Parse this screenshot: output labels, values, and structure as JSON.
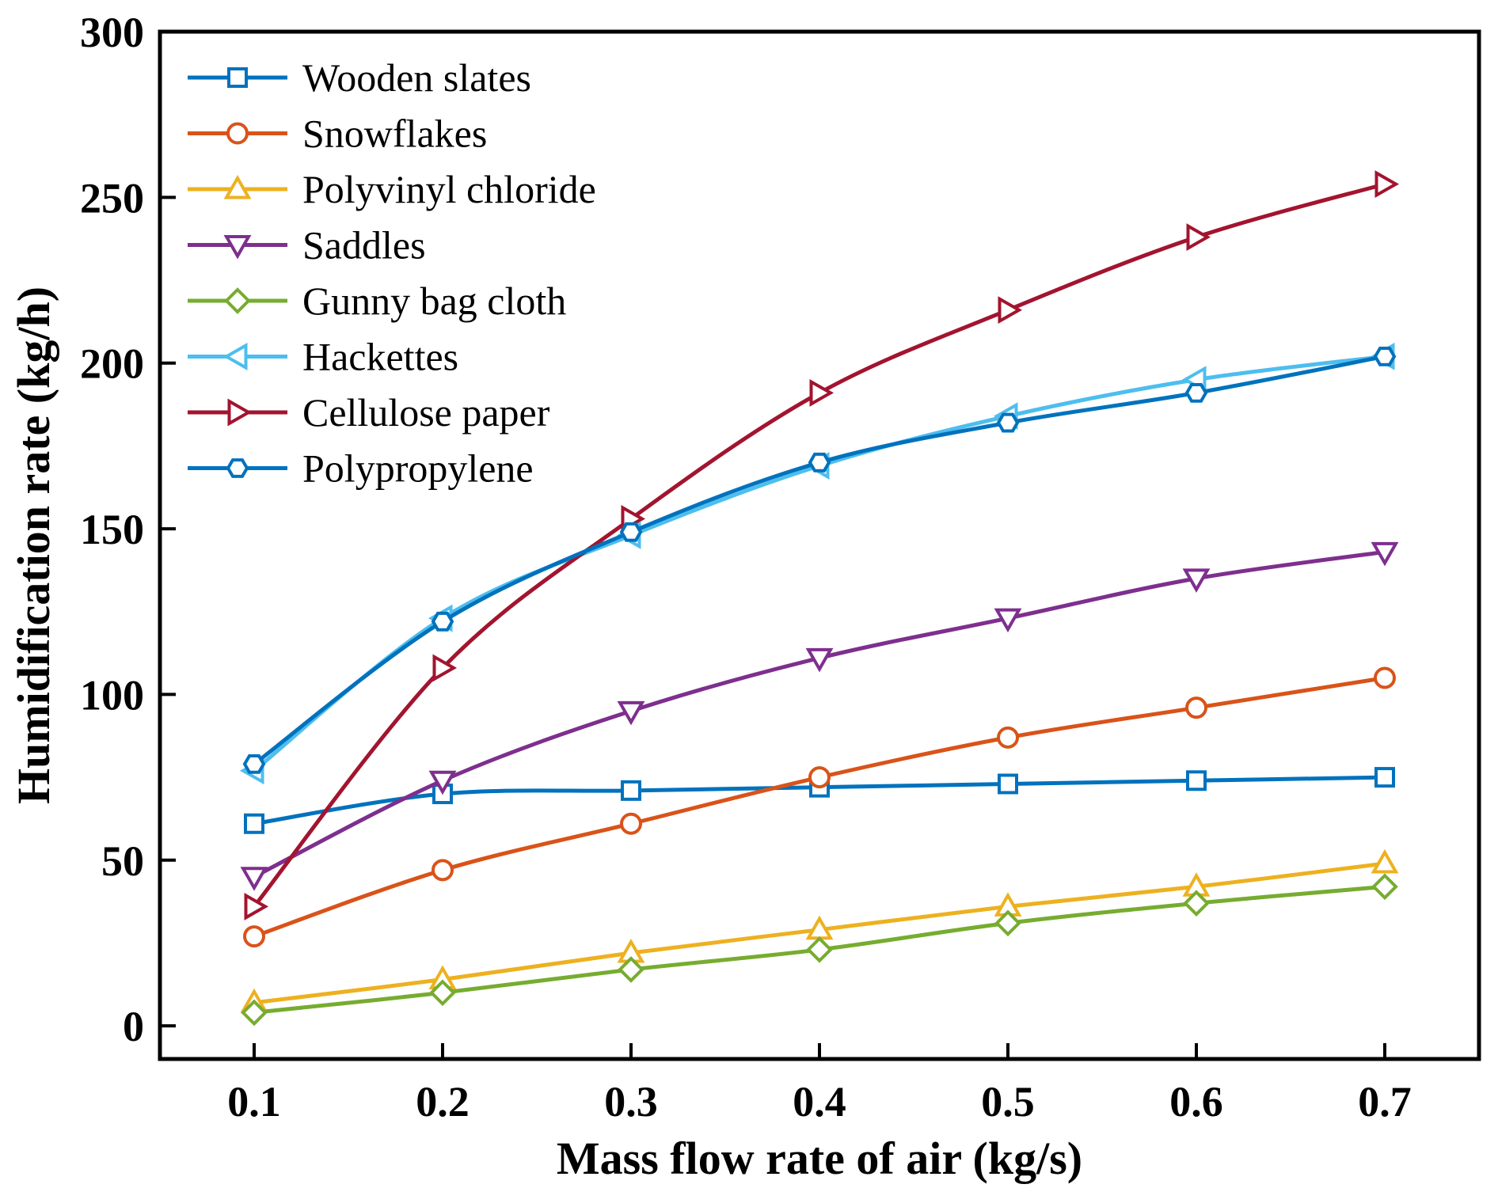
{
  "chart_data": {
    "type": "line",
    "title": "",
    "xlabel": "Mass flow rate of air (kg/s)",
    "ylabel": "Humidification rate (kg/h)",
    "xlim": [
      0.05,
      0.75
    ],
    "ylim": [
      -10,
      300
    ],
    "x": [
      0.1,
      0.2,
      0.3,
      0.4,
      0.5,
      0.6,
      0.7
    ],
    "xticks": [
      0.1,
      0.2,
      0.3,
      0.4,
      0.5,
      0.6,
      0.7
    ],
    "xtick_labels": [
      "0.1",
      "0.2",
      "0.3",
      "0.4",
      "0.5",
      "0.6",
      "0.7"
    ],
    "yticks": [
      0,
      50,
      100,
      150,
      200,
      250,
      300
    ],
    "ytick_labels": [
      "0",
      "50",
      "100",
      "150",
      "200",
      "250",
      "300"
    ],
    "grid": false,
    "legend_position": "top-left",
    "series": [
      {
        "name": "Wooden slates",
        "color": "#0072BD",
        "marker": "square",
        "values": [
          61,
          70,
          71,
          72,
          73,
          74,
          75
        ]
      },
      {
        "name": "Snowflakes",
        "color": "#D95319",
        "marker": "circle",
        "values": [
          27,
          47,
          61,
          75,
          87,
          96,
          105
        ]
      },
      {
        "name": "Polyvinyl chloride",
        "color": "#EDB120",
        "marker": "triangle-up",
        "values": [
          7,
          14,
          22,
          29,
          36,
          42,
          49
        ]
      },
      {
        "name": "Saddles",
        "color": "#7E2F8E",
        "marker": "triangle-down",
        "values": [
          45,
          74,
          95,
          111,
          123,
          135,
          143
        ]
      },
      {
        "name": "Gunny bag cloth",
        "color": "#77AC30",
        "marker": "diamond",
        "values": [
          4,
          10,
          17,
          23,
          31,
          37,
          42
        ]
      },
      {
        "name": "Hackettes",
        "color": "#4DBEEE",
        "marker": "triangle-left",
        "values": [
          77,
          123,
          148,
          169,
          184,
          195,
          202
        ]
      },
      {
        "name": "Cellulose paper",
        "color": "#A2142F",
        "marker": "triangle-right",
        "values": [
          36,
          108,
          153,
          191,
          216,
          238,
          254
        ]
      },
      {
        "name": "Polypropylene",
        "color": "#0072BD",
        "marker": "hexagon",
        "values": [
          79,
          122,
          149,
          170,
          182,
          191,
          202
        ]
      }
    ]
  }
}
